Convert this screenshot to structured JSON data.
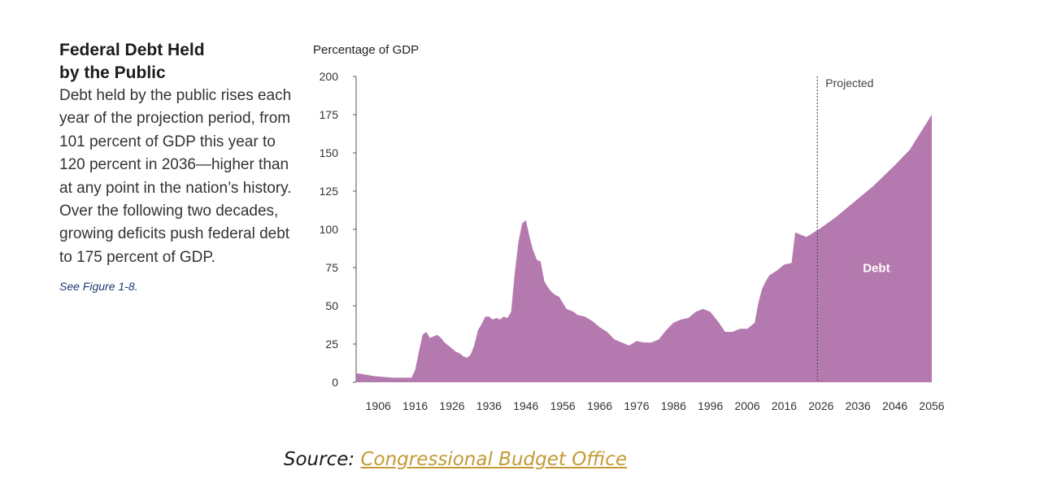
{
  "sidebar": {
    "title": "Federal Debt Held\nby the Public",
    "body": "Debt held by the public rises each year of the projection period, from 101 percent of GDP this year to 120 percent in 2036—higher than at any point in the nation’s history. Over the following two decades, growing deficits push federal debt to 175 percent of GDP.",
    "reference": "See Figure 1-8."
  },
  "source": {
    "prefix": "Source:",
    "link_text": "Congressional Budget Office"
  },
  "colors": {
    "area": "#b47aaf",
    "link": "#c39a33",
    "projection_line": "#555555"
  },
  "chart_data": {
    "type": "area",
    "ylabel": "Percentage of GDP",
    "ylim": [
      0,
      200
    ],
    "xlim": [
      1900,
      2056
    ],
    "y_ticks": [
      0,
      25,
      50,
      75,
      100,
      125,
      150,
      175,
      200
    ],
    "x_ticks": [
      1906,
      1916,
      1926,
      1936,
      1946,
      1956,
      1966,
      1976,
      1986,
      1996,
      2006,
      2016,
      2026,
      2036,
      2046,
      2056
    ],
    "projection_start": 2025,
    "projection_label": "Projected",
    "area_label": "Debt",
    "series": [
      {
        "name": "Debt",
        "x": [
          1900,
          1905,
          1910,
          1915,
          1916,
          1917,
          1918,
          1919,
          1920,
          1921,
          1922,
          1923,
          1924,
          1925,
          1926,
          1927,
          1928,
          1929,
          1930,
          1931,
          1932,
          1933,
          1934,
          1935,
          1936,
          1937,
          1938,
          1939,
          1940,
          1941,
          1942,
          1943,
          1944,
          1945,
          1946,
          1947,
          1948,
          1949,
          1950,
          1951,
          1952,
          1953,
          1954,
          1955,
          1956,
          1957,
          1958,
          1959,
          1960,
          1962,
          1964,
          1966,
          1968,
          1970,
          1972,
          1974,
          1976,
          1978,
          1980,
          1982,
          1984,
          1986,
          1988,
          1990,
          1992,
          1994,
          1996,
          1998,
          2000,
          2002,
          2004,
          2006,
          2008,
          2009,
          2010,
          2011,
          2012,
          2014,
          2016,
          2018,
          2019,
          2020,
          2022,
          2024,
          2026,
          2030,
          2036,
          2040,
          2046,
          2050,
          2056
        ],
        "values": [
          6,
          4,
          3,
          3,
          8,
          20,
          31,
          33,
          29,
          30,
          31,
          29,
          26,
          24,
          22,
          20,
          19,
          17,
          16,
          18,
          24,
          34,
          38,
          43,
          43,
          41,
          42,
          41,
          43,
          42,
          46,
          72,
          92,
          104,
          106,
          95,
          86,
          80,
          79,
          66,
          62,
          59,
          57,
          56,
          52,
          48,
          47,
          46,
          44,
          43,
          40,
          36,
          33,
          28,
          26,
          24,
          27,
          26,
          26,
          28,
          34,
          39,
          41,
          42,
          46,
          48,
          46,
          40,
          33,
          33,
          35,
          35,
          39,
          52,
          61,
          66,
          70,
          73,
          77,
          78,
          98,
          97,
          95,
          98,
          101,
          108,
          120,
          128,
          142,
          152,
          175
        ]
      }
    ]
  }
}
